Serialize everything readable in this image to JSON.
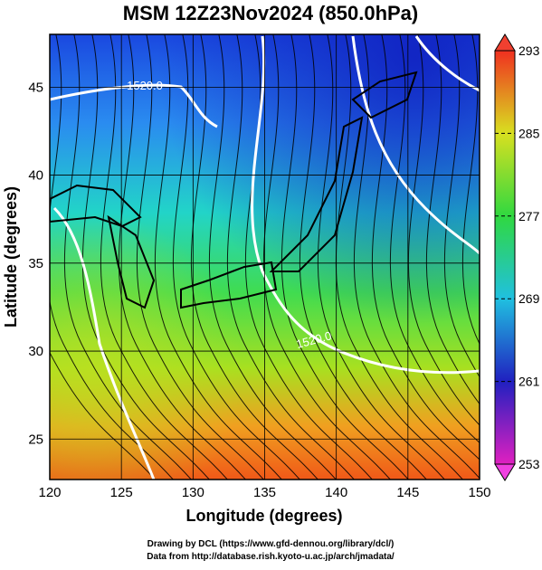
{
  "title": "MSM 12Z23Nov2024 (850.0hPa)",
  "x_axis": {
    "label": "Longitude (degrees)",
    "lim": [
      120,
      150
    ],
    "ticks": [
      120,
      125,
      130,
      135,
      140,
      145,
      150
    ]
  },
  "y_axis": {
    "label": "Latitude  (degrees)",
    "lim": [
      22.7,
      48
    ],
    "ticks": [
      25,
      30,
      35,
      40,
      45
    ]
  },
  "colorbar": {
    "lim": [
      253,
      293
    ],
    "ticks": [
      253,
      261,
      269,
      277,
      285,
      293
    ]
  },
  "contour_labels": [
    "1520.0",
    "1520.0"
  ],
  "footer": [
    "Drawing by DCL (https://www.gfd-dennou.org/library/dcl/)",
    "Data from http://database.rish.kyoto-u.ac.jp/arch/jmadata/"
  ]
}
